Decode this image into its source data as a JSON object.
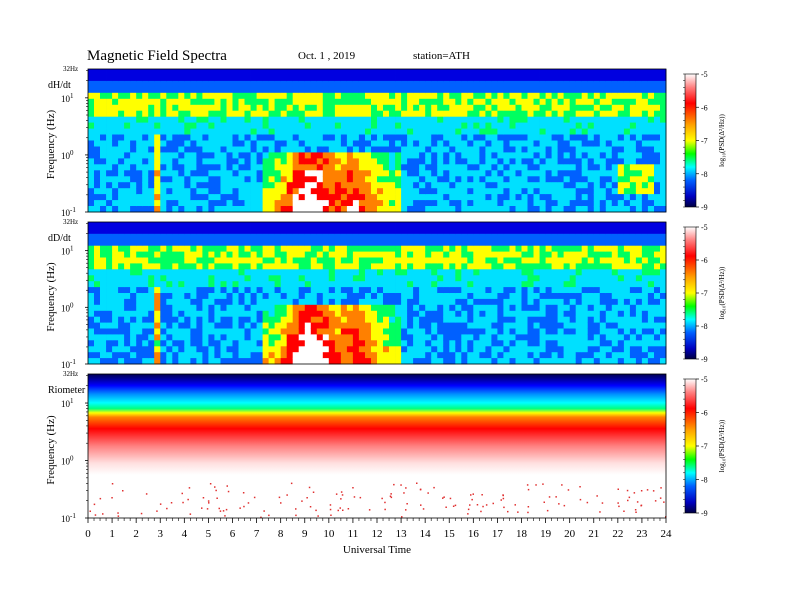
{
  "chart_data": [
    {
      "type": "heatmap",
      "panel_label": "dH/dt",
      "ylabel": "Frequency  (Hz)",
      "top_label": "32Hz",
      "yticks": [
        {
          "base": "10",
          "exp": "1",
          "value": 10
        },
        {
          "base": "10",
          "exp": "0",
          "value": 1
        },
        {
          "base": "10",
          "exp": "-1",
          "value": 0.1
        }
      ],
      "ylim": [
        0.1,
        32
      ],
      "yscale": "log",
      "xlim": [
        0,
        24
      ],
      "colorbar": {
        "label": "log₁₀(PSD(Δ²/Hz))",
        "ticks": [
          "-5",
          "-6",
          "-7",
          "-8",
          "-9"
        ],
        "range": [
          -9,
          -5
        ]
      },
      "features": "Pc1/ELF activity 7.3-13 UT below 1 Hz; band near 5 Hz; bursts ~2.8-3 UT and ~22-23.5 UT"
    },
    {
      "type": "heatmap",
      "panel_label": "dD/dt",
      "ylabel": "Frequency  (Hz)",
      "top_label": "32Hz",
      "yticks": [
        {
          "base": "10",
          "exp": "1",
          "value": 10
        },
        {
          "base": "10",
          "exp": "0",
          "value": 1
        },
        {
          "base": "10",
          "exp": "-1",
          "value": 0.1
        }
      ],
      "ylim": [
        0.1,
        32
      ],
      "yscale": "log",
      "xlim": [
        0,
        24
      ],
      "colorbar": {
        "label": "log₁₀(PSD(Δ²/Hz))",
        "ticks": [
          "-5",
          "-6",
          "-7",
          "-8",
          "-9"
        ],
        "range": [
          -9,
          -5
        ]
      }
    },
    {
      "type": "heatmap",
      "panel_label": "Riometer",
      "ylabel": "Frequency  (Hz)",
      "top_label": "32Hz",
      "yticks": [
        {
          "base": "10",
          "exp": "1",
          "value": 10
        },
        {
          "base": "10",
          "exp": "0",
          "value": 1
        },
        {
          "base": "10",
          "exp": "-1",
          "value": 0.1
        }
      ],
      "ylim": [
        0.1,
        32
      ],
      "yscale": "log",
      "xlim": [
        0,
        24
      ],
      "colorbar": {
        "label": "log₁₀(PSD(Δ²/Hz))",
        "ticks": [
          "-5",
          "-6",
          "-7",
          "-8",
          "-9"
        ],
        "range": [
          -9,
          -5
        ]
      }
    }
  ],
  "header": {
    "title": "Magnetic  Field  Spectra",
    "date": "Oct. 1  , 2019",
    "station": "station=ATH"
  },
  "xaxis": {
    "label": "Universal  Time",
    "ticks": [
      "0",
      "1",
      "2",
      "3",
      "4",
      "5",
      "6",
      "7",
      "8",
      "9",
      "10",
      "11",
      "12",
      "13",
      "14",
      "15",
      "16",
      "17",
      "18",
      "19",
      "20",
      "21",
      "22",
      "23",
      "24"
    ]
  },
  "colors": {
    "scale": [
      "#ffffff",
      "#ff0000",
      "#ff8c00",
      "#ffff00",
      "#00ff00",
      "#00ffff",
      "#0066ff",
      "#0000cc",
      "#000033"
    ]
  }
}
